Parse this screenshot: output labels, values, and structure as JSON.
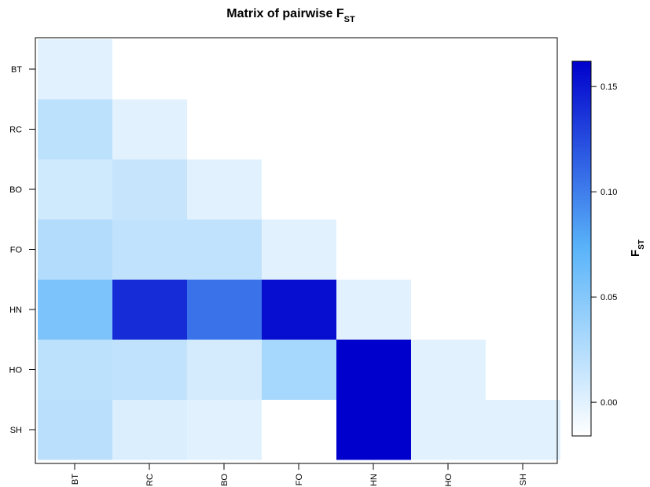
{
  "chart_data": {
    "type": "heatmap",
    "title": "Matrix of pairwise F",
    "title_subscript": "ST",
    "row_labels": [
      "BT",
      "RC",
      "BO",
      "FO",
      "HN",
      "HO",
      "SH"
    ],
    "col_labels": [
      "BT",
      "RC",
      "BO",
      "FO",
      "HN",
      "HO",
      "SH"
    ],
    "matrix": [
      [
        0.0,
        null,
        null,
        null,
        null,
        null,
        null
      ],
      [
        0.02,
        0.0,
        null,
        null,
        null,
        null,
        null
      ],
      [
        0.01,
        0.015,
        0.0,
        null,
        null,
        null,
        null
      ],
      [
        0.025,
        0.018,
        0.018,
        0.0,
        null,
        null,
        null
      ],
      [
        0.055,
        0.14,
        0.105,
        0.155,
        0.0,
        null,
        null
      ],
      [
        0.02,
        0.018,
        0.008,
        0.032,
        0.162,
        0.0,
        null
      ],
      [
        0.022,
        0.004,
        0.0,
        -0.016,
        0.162,
        0.0,
        0.0
      ]
    ],
    "colorbar": {
      "label": "F",
      "label_subscript": "ST",
      "range": [
        -0.016,
        0.162
      ],
      "ticks": [
        0.0,
        0.05,
        0.1,
        0.15
      ],
      "tick_labels": [
        "0.00",
        "0.05",
        "0.10",
        "0.15"
      ],
      "colors": [
        "#ffffff",
        "#5ab4f9",
        "#0000cc"
      ]
    }
  }
}
